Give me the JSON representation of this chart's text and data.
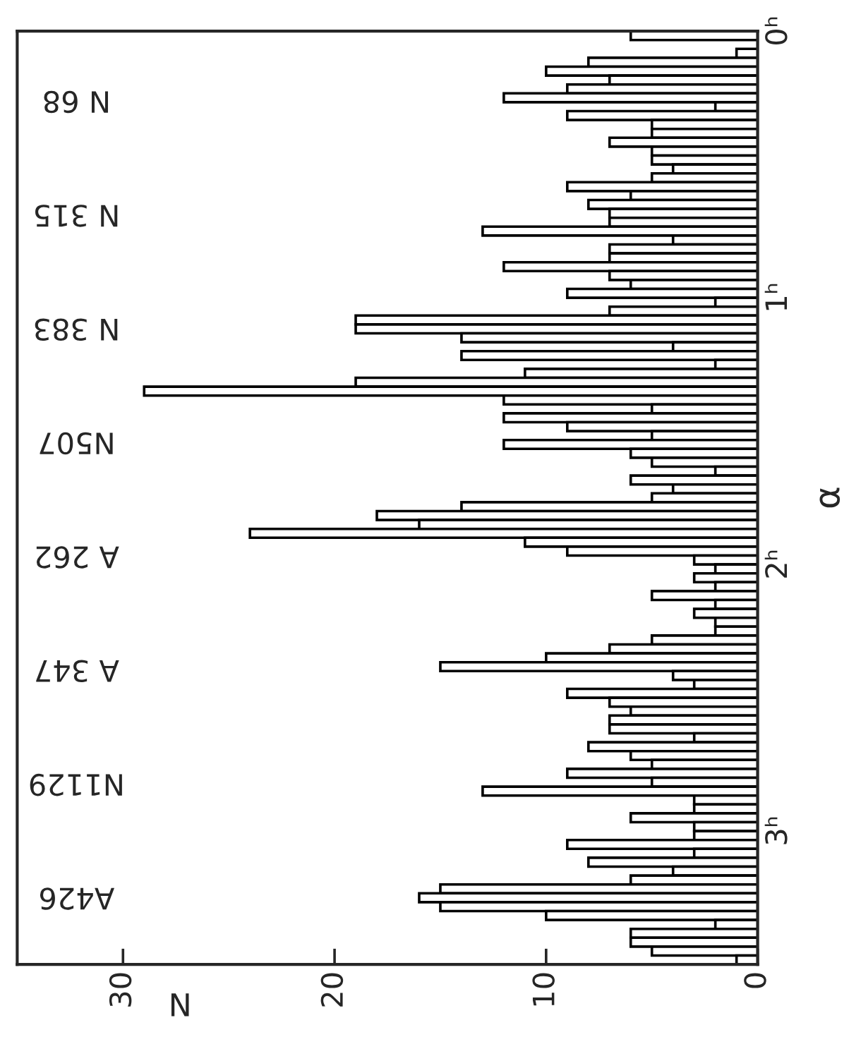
{
  "chart_data": {
    "type": "histogram",
    "orientation": "horizontal",
    "xlabel": "N",
    "ylabel": "α",
    "bins": [
      0,
      0.0333,
      0.0667,
      0.1,
      0.1333,
      0.1667,
      0.2,
      0.2333,
      0.2667,
      0.3,
      0.3333,
      0.3667,
      0.4,
      0.4333,
      0.4667,
      0.5,
      0.5333,
      0.5667,
      0.6,
      0.6333,
      0.6667,
      0.7,
      0.7333,
      0.7667,
      0.8,
      0.8333,
      0.8667,
      0.9,
      0.9333,
      0.9667,
      1,
      1.0333,
      1.0667,
      1.1,
      1.1333,
      1.1667,
      1.2,
      1.2333,
      1.2667,
      1.3,
      1.3333,
      1.3667,
      1.4,
      1.4333,
      1.4667,
      1.5,
      1.5333,
      1.5667,
      1.6,
      1.6333,
      1.6667,
      1.7,
      1.7333,
      1.7667,
      1.8,
      1.8333,
      1.8667,
      1.9,
      1.9333,
      1.9667,
      2,
      2.0333,
      2.0667,
      2.1,
      2.1333,
      2.1667,
      2.2,
      2.2333,
      2.2667,
      2.3,
      2.3333,
      2.3667,
      2.4,
      2.4333,
      2.4667,
      2.5,
      2.5333,
      2.5667,
      2.6,
      2.6333,
      2.6667,
      2.7,
      2.7333,
      2.7667,
      2.8,
      2.8333,
      2.8667,
      2.9,
      2.9333,
      2.9667,
      3,
      3.0333,
      3.0667,
      3.1,
      3.1333,
      3.1667,
      3.2,
      3.2333,
      3.2667,
      3.3,
      3.3333,
      3.3667,
      3.4,
      3.4333,
      3.4667,
      3.5
    ],
    "values": [
      6,
      0,
      1,
      8,
      10,
      7,
      9,
      12,
      2,
      9,
      5,
      5,
      7,
      5,
      5,
      4,
      5,
      9,
      6,
      8,
      7,
      7,
      13,
      4,
      7,
      7,
      12,
      7,
      6,
      9,
      2,
      7,
      19,
      19,
      14,
      4,
      14,
      2,
      11,
      19,
      29,
      12,
      5,
      12,
      9,
      5,
      12,
      6,
      5,
      2,
      6,
      4,
      5,
      14,
      18,
      16,
      24,
      11,
      9,
      3,
      2,
      3,
      2,
      5,
      2,
      3,
      2,
      2,
      5,
      7,
      10,
      15,
      4,
      3,
      9,
      7,
      6,
      7,
      7,
      3,
      8,
      6,
      5,
      9,
      5,
      13,
      3,
      3,
      6,
      3,
      3,
      9,
      3,
      8,
      4,
      6,
      15,
      16,
      15,
      10,
      2,
      6,
      6,
      5,
      1
    ],
    "color": "#000000",
    "xlim": [
      35,
      0
    ],
    "xticks": [
      0,
      10,
      20,
      30
    ],
    "ylim": [
      3.5,
      0
    ],
    "yticks": [
      {
        "value": 0,
        "label": "0ʰ"
      },
      {
        "value": 1,
        "label": "1ʰ"
      },
      {
        "value": 2,
        "label": "2ʰ"
      },
      {
        "value": 3,
        "label": "3ʰ"
      }
    ],
    "annotations": [
      "N 68",
      "N 315",
      "N 383",
      "N507",
      "A 262",
      "A 347",
      "N1129",
      "A426"
    ],
    "grid": false,
    "legend": false
  }
}
